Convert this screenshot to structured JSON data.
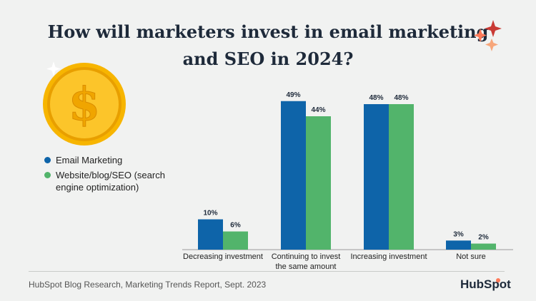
{
  "title": {
    "line1": "How will marketers invest in email marketing",
    "line2": "and SEO in 2024?"
  },
  "decorations": {
    "coin_icon": "dollar-coin-icon",
    "coin_symbol": "$",
    "sparkle_icon": "sparkle-icon"
  },
  "colors": {
    "email": "#0e64a9",
    "seo": "#52b46b",
    "coin": "#f7b500",
    "coin_inner": "#fcc52a",
    "title": "#1e2a3a",
    "sparkle_red": "#c93a34",
    "sparkle_orange": "#ff7a59",
    "sparkle_light": "#f7a67a"
  },
  "chart_data": {
    "type": "bar",
    "title": "How will marketers invest in email marketing and SEO in 2024?",
    "categories": [
      "Decreasing investment",
      "Continuing to invest the same amount",
      "Increasing investment",
      "Not sure"
    ],
    "category_lines": [
      [
        "Decreasing investment"
      ],
      [
        "Continuing to invest",
        "the same amount"
      ],
      [
        "Increasing investment"
      ],
      [
        "Not sure"
      ]
    ],
    "series": [
      {
        "name": "Email Marketing",
        "values": [
          10,
          49,
          48,
          3
        ],
        "labels": [
          "10%",
          "49%",
          "48%",
          "3%"
        ]
      },
      {
        "name": "Website/blog/SEO (search engine optimization)",
        "values": [
          6,
          44,
          48,
          2
        ],
        "labels": [
          "6%",
          "44%",
          "48%",
          "2%"
        ]
      }
    ],
    "unit": "%",
    "ylim": [
      0,
      50
    ],
    "xlabel": "",
    "ylabel": "",
    "grid": false,
    "legend": "left"
  },
  "legend": {
    "items": [
      {
        "lines": [
          "Email Marketing"
        ]
      },
      {
        "lines": [
          "Website/blog/SEO (search",
          "engine optimization)"
        ]
      }
    ]
  },
  "footer": {
    "source": "HubSpot Blog Research, Marketing Trends Report, Sept. 2023",
    "brand": "HubSpot",
    "brand_icon": "hubspot-logo-icon"
  }
}
